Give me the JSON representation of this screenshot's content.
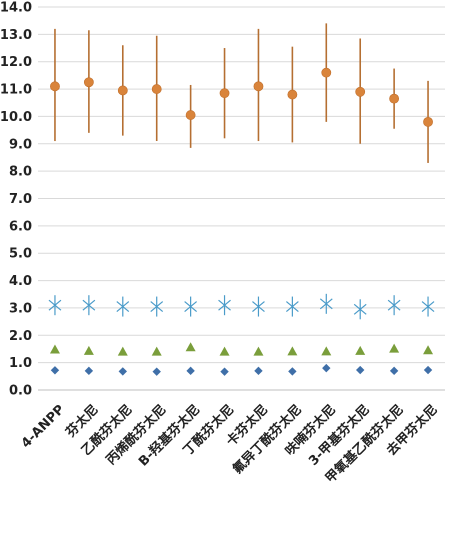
{
  "chart_data": {
    "type": "scatter",
    "title": "",
    "xlabel": "",
    "ylabel": "",
    "ylim": [
      0,
      14
    ],
    "yticks": [
      "0.0",
      "1.0",
      "2.0",
      "3.0",
      "4.0",
      "5.0",
      "6.0",
      "7.0",
      "8.0",
      "9.0",
      "10.0",
      "11.0",
      "12.0",
      "13.0",
      "14.0"
    ],
    "grid": true,
    "legend": "none",
    "categories": [
      "4-ANPP",
      "芬太尼",
      "乙酰芬太尼",
      "丙烯酰芬太尼",
      "B-羟基芬太尼",
      "丁酰芬太尼",
      "卡芬太尼",
      "氟异丁酰芬太尼",
      "呋喃芬太尼",
      "3-甲基芬太尼",
      "甲氧基乙酰芬太尼",
      "去甲芬太尼"
    ],
    "series": [
      {
        "marker": "circle",
        "color": "#D9843B",
        "range_color": "#B56F32",
        "values": [
          11.1,
          11.25,
          10.95,
          11.0,
          10.05,
          10.85,
          11.1,
          10.8,
          11.6,
          10.9,
          10.65,
          9.8
        ],
        "low": [
          9.1,
          9.4,
          9.3,
          9.1,
          8.85,
          9.2,
          9.1,
          9.05,
          9.8,
          9.0,
          9.55,
          8.3
        ],
        "high": [
          13.2,
          13.15,
          12.6,
          12.95,
          11.15,
          12.5,
          13.2,
          12.55,
          13.4,
          12.85,
          11.75,
          11.3
        ]
      },
      {
        "marker": "star",
        "color": "#4A9BC9",
        "values": [
          3.1,
          3.1,
          3.05,
          3.05,
          3.05,
          3.1,
          3.05,
          3.05,
          3.15,
          2.95,
          3.1,
          3.05
        ]
      },
      {
        "marker": "triangle",
        "color": "#7A9E3B",
        "values": [
          1.5,
          1.45,
          1.42,
          1.42,
          1.58,
          1.42,
          1.42,
          1.43,
          1.43,
          1.45,
          1.53,
          1.47
        ]
      },
      {
        "marker": "diamond",
        "color": "#3F6FA8",
        "values": [
          0.72,
          0.7,
          0.68,
          0.67,
          0.7,
          0.67,
          0.7,
          0.68,
          0.8,
          0.73,
          0.7,
          0.73
        ]
      }
    ]
  }
}
